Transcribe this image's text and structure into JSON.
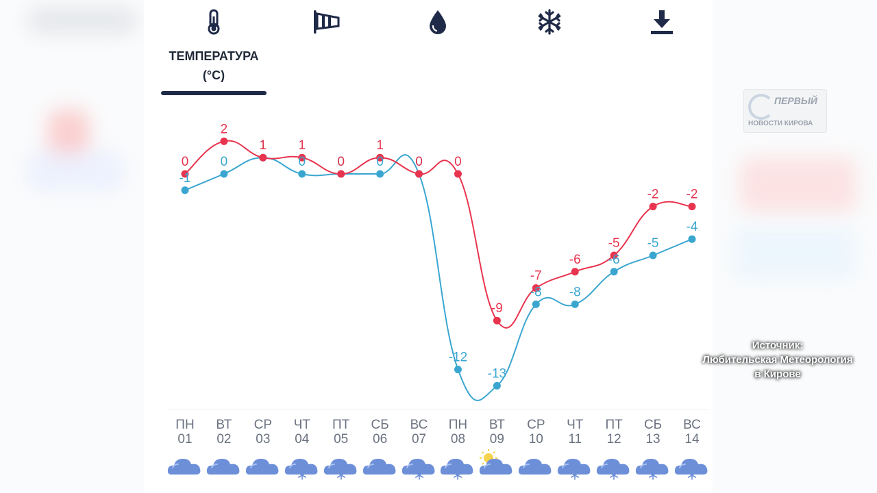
{
  "tabs": [
    {
      "icon": "thermometer-icon",
      "label_line1": "ТЕМПЕРАТУРА",
      "label_line2": "(°C)"
    },
    {
      "icon": "wind-sock-icon"
    },
    {
      "icon": "water-drop-icon"
    },
    {
      "icon": "snowflake-icon"
    },
    {
      "icon": "download-icon"
    }
  ],
  "watermark": {
    "logo_line1": "ПЕРВЫЙ",
    "logo_line2": "НОВОСТИ КИРОВА"
  },
  "source": {
    "line1": "Источник:",
    "line2": "Любительская Метеорология",
    "line3": "в Кирове"
  },
  "colors": {
    "max_series": "#e8344e",
    "min_series": "#3aa6d0",
    "active_tab": "#1f2a48",
    "icon": "#1f2a48",
    "cloud": "#6d8fd8"
  },
  "days": [
    {
      "weekday": "ПН",
      "date": "01",
      "icon": "cloud-icon"
    },
    {
      "weekday": "ВТ",
      "date": "02",
      "icon": "cloud-icon"
    },
    {
      "weekday": "СР",
      "date": "03",
      "icon": "cloud-icon"
    },
    {
      "weekday": "ЧТ",
      "date": "04",
      "icon": "cloud-snow-icon"
    },
    {
      "weekday": "ПТ",
      "date": "05",
      "icon": "cloud-snow-icon"
    },
    {
      "weekday": "СБ",
      "date": "06",
      "icon": "cloud-icon"
    },
    {
      "weekday": "ВС",
      "date": "07",
      "icon": "cloud-snow-icon"
    },
    {
      "weekday": "ПН",
      "date": "08",
      "icon": "cloud-snow-icon"
    },
    {
      "weekday": "ВТ",
      "date": "09",
      "icon": "sun-cloud-icon"
    },
    {
      "weekday": "СР",
      "date": "10",
      "icon": "cloud-icon"
    },
    {
      "weekday": "ЧТ",
      "date": "11",
      "icon": "cloud-snow-icon"
    },
    {
      "weekday": "ПТ",
      "date": "12",
      "icon": "cloud-snow-icon"
    },
    {
      "weekday": "СБ",
      "date": "13",
      "icon": "cloud-snow-icon"
    },
    {
      "weekday": "ВС",
      "date": "14",
      "icon": "cloud-snow-icon"
    }
  ],
  "chart_data": {
    "type": "line",
    "title": "",
    "xlabel": "",
    "ylabel": "",
    "categories": [
      "ПН 01",
      "ВТ 02",
      "СР 03",
      "ЧТ 04",
      "ПТ 05",
      "СБ 06",
      "ВС 07",
      "ПН 08",
      "ВТ 09",
      "СР 10",
      "ЧТ 11",
      "ПТ 12",
      "СБ 13",
      "ВС 14"
    ],
    "series": [
      {
        "values": [
          0,
          2,
          1,
          1,
          0,
          1,
          0,
          0,
          -9,
          -7,
          -6,
          -5,
          -2,
          -2
        ],
        "color": "#e8344e"
      },
      {
        "values": [
          -1,
          0,
          1,
          0,
          0,
          0,
          0,
          -12,
          -13,
          -8,
          -8,
          -6,
          -5,
          -4
        ],
        "color": "#3aa6d0"
      }
    ],
    "ylim": [
      -14,
      3
    ],
    "grid": false,
    "legend": "none"
  }
}
